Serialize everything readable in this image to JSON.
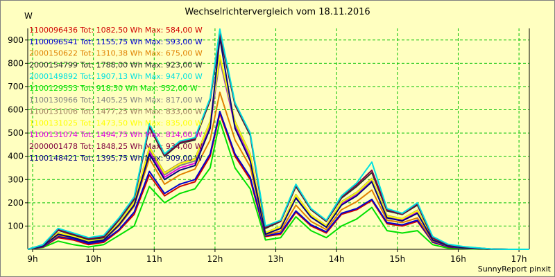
{
  "header": {
    "title": "Wechselrichtervergleich vom 18.11.2016",
    "unit": "W"
  },
  "footer": {
    "text": "SunnyReport pinxit"
  },
  "chart_data": {
    "type": "line",
    "title": "Wechselrichtervergleich vom 18.11.2016",
    "xlabel": "",
    "ylabel": "W",
    "xlim": [
      8.92,
      17.17
    ],
    "ylim": [
      0,
      950
    ],
    "grid": true,
    "legend_position": "top-left",
    "y_ticks": [
      100,
      200,
      300,
      400,
      500,
      600,
      700,
      800,
      900
    ],
    "x_ticks": [
      {
        "v": 9,
        "label": "9h"
      },
      {
        "v": 10,
        "label": "10h"
      },
      {
        "v": 11,
        "label": "11h"
      },
      {
        "v": 12,
        "label": "12h"
      },
      {
        "v": 13,
        "label": "13h"
      },
      {
        "v": 14,
        "label": "14h"
      },
      {
        "v": 15,
        "label": "15h"
      },
      {
        "v": 16,
        "label": "16h"
      },
      {
        "v": 17,
        "label": "17h"
      }
    ],
    "x": [
      8.92,
      9.17,
      9.42,
      9.67,
      9.92,
      10.17,
      10.42,
      10.67,
      10.92,
      11.17,
      11.42,
      11.67,
      11.92,
      12.08,
      12.33,
      12.58,
      12.83,
      13.08,
      13.33,
      13.58,
      13.83,
      14.08,
      14.33,
      14.58,
      14.83,
      15.08,
      15.33,
      15.58,
      15.83,
      16.08,
      16.33,
      16.58,
      16.83,
      17.17
    ],
    "series": [
      {
        "name": "1100096436",
        "legend": "1100096436 Tot: 1082,50 Wh Max: 584,00 W",
        "color": "#d00000",
        "values": [
          0,
          10,
          50,
          40,
          20,
          30,
          80,
          150,
          320,
          230,
          270,
          290,
          400,
          584,
          400,
          300,
          55,
          65,
          160,
          100,
          70,
          150,
          170,
          210,
          110,
          100,
          120,
          30,
          10,
          5,
          2,
          0,
          0,
          0
        ]
      },
      {
        "name": "1100096541",
        "legend": "1100096541 Tot: 1155,75 Wh Max: 593,00 W",
        "color": "#0000d0",
        "values": [
          0,
          12,
          55,
          45,
          25,
          35,
          85,
          160,
          335,
          240,
          280,
          300,
          410,
          593,
          410,
          310,
          58,
          70,
          165,
          105,
          75,
          155,
          175,
          215,
          115,
          105,
          125,
          32,
          12,
          6,
          3,
          0,
          0,
          0
        ]
      },
      {
        "name": "2000150622",
        "legend": "2000150622 Tot: 1310,38 Wh Max: 675,00 W",
        "color": "#e08000",
        "values": [
          0,
          14,
          60,
          50,
          30,
          40,
          100,
          185,
          390,
          280,
          320,
          345,
          470,
          675,
          470,
          355,
          62,
          78,
          190,
          120,
          85,
          170,
          205,
          255,
          125,
          115,
          135,
          36,
          14,
          7,
          3,
          0,
          0,
          0
        ]
      },
      {
        "name": "2000154799",
        "legend": "2000154799 Tot: 1788,00 Wh Max: 923,00 W",
        "color": "#303030",
        "values": [
          0,
          18,
          82,
          62,
          42,
          50,
          125,
          215,
          525,
          400,
          455,
          470,
          640,
          923,
          620,
          490,
          90,
          120,
          270,
          170,
          120,
          220,
          270,
          330,
          165,
          150,
          190,
          48,
          18,
          10,
          5,
          1,
          0,
          0
        ]
      },
      {
        "name": "2000149892",
        "legend": "2000149892 Tot: 1907,13 Wh Max: 947,00 W",
        "color": "#00e0e0",
        "values": [
          0,
          20,
          90,
          70,
          50,
          60,
          135,
          225,
          540,
          410,
          465,
          480,
          650,
          947,
          630,
          500,
          100,
          125,
          280,
          175,
          125,
          230,
          285,
          375,
          175,
          155,
          200,
          55,
          22,
          12,
          6,
          1,
          0,
          0
        ]
      },
      {
        "name": "1100129553",
        "legend": "1100129553 Tot: 918,50 Wh Max: 552,00 W",
        "color": "#00e000",
        "values": [
          0,
          8,
          35,
          20,
          10,
          20,
          60,
          100,
          270,
          200,
          240,
          260,
          350,
          552,
          350,
          260,
          40,
          50,
          140,
          80,
          50,
          100,
          130,
          180,
          80,
          70,
          80,
          20,
          5,
          3,
          1,
          0,
          0,
          0
        ]
      },
      {
        "name": "1100130966",
        "legend": "1100130966 Tot: 1405,25 Wh Max: 817,00 W",
        "color": "#808080",
        "values": [
          0,
          15,
          70,
          55,
          35,
          45,
          110,
          200,
          430,
          320,
          360,
          380,
          540,
          817,
          540,
          400,
          70,
          95,
          230,
          145,
          100,
          200,
          240,
          300,
          140,
          130,
          165,
          42,
          16,
          8,
          4,
          1,
          0,
          0
        ]
      },
      {
        "name": "1100131006",
        "legend": "1100131006 Tot: 1477,25 Wh Max: 833,00 W",
        "color": "#a08060",
        "values": [
          0,
          15,
          72,
          58,
          38,
          48,
          112,
          205,
          440,
          330,
          370,
          390,
          550,
          833,
          550,
          410,
          72,
          98,
          235,
          148,
          102,
          205,
          245,
          305,
          145,
          132,
          168,
          43,
          16,
          8,
          4,
          1,
          0,
          0
        ]
      },
      {
        "name": "1100131025",
        "legend": "1100131025 Tot: 1473,50 Wh Max: 835,00 W",
        "color": "#ffff00",
        "values": [
          0,
          15,
          71,
          57,
          37,
          47,
          111,
          202,
          437,
          327,
          367,
          387,
          547,
          835,
          547,
          407,
          71,
          97,
          233,
          147,
          101,
          203,
          243,
          303,
          143,
          131,
          166,
          43,
          16,
          8,
          4,
          1,
          0,
          0
        ]
      },
      {
        "name": "1100131074",
        "legend": "1100131074 Tot: 1494,75 Wh Max: 814,00 W",
        "color": "#e000e0",
        "values": [
          0,
          15,
          68,
          52,
          32,
          42,
          108,
          195,
          420,
          310,
          350,
          370,
          530,
          814,
          530,
          390,
          68,
          92,
          225,
          140,
          98,
          195,
          235,
          295,
          138,
          126,
          160,
          41,
          15,
          8,
          4,
          1,
          0,
          0
        ]
      },
      {
        "name": "2000001478",
        "legend": "2000001478 Tot: 1848,25 Wh Max: 934,00 W",
        "color": "#800040",
        "values": [
          0,
          19,
          85,
          66,
          46,
          55,
          130,
          220,
          530,
          405,
          460,
          475,
          645,
          934,
          625,
          495,
          95,
          122,
          275,
          172,
          122,
          225,
          278,
          340,
          170,
          152,
          195,
          50,
          20,
          11,
          5,
          1,
          0,
          0
        ]
      },
      {
        "name": "1100148421",
        "legend": "1100148421 Tot: 1395,75 Wh Max: 909,00 W",
        "color": "#000080",
        "values": [
          0,
          14,
          65,
          50,
          30,
          40,
          105,
          190,
          410,
          300,
          340,
          360,
          520,
          909,
          520,
          380,
          65,
          90,
          220,
          138,
          95,
          190,
          230,
          290,
          135,
          122,
          155,
          40,
          15,
          7,
          3,
          1,
          0,
          0
        ]
      }
    ]
  }
}
